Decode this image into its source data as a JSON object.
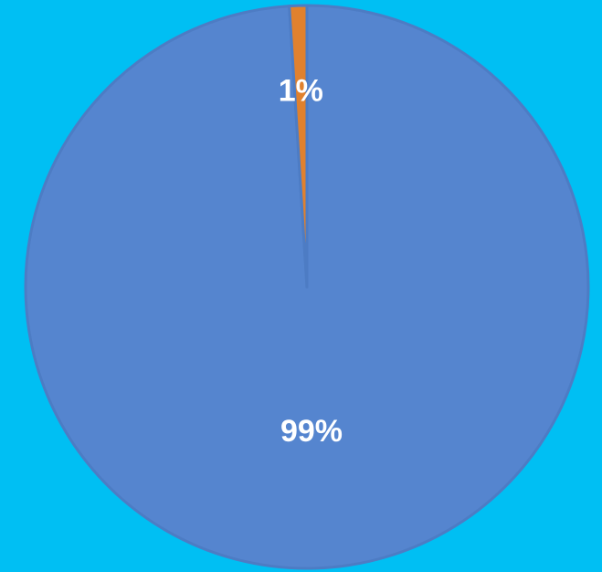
{
  "chart_data": {
    "type": "pie",
    "series": [
      {
        "values": [
          99,
          1
        ],
        "value_labels": [
          "99%",
          "1%"
        ],
        "colors": [
          "#5585cf",
          "#e0812e"
        ]
      }
    ],
    "start_angle": 0,
    "direction": "clockwise"
  }
}
